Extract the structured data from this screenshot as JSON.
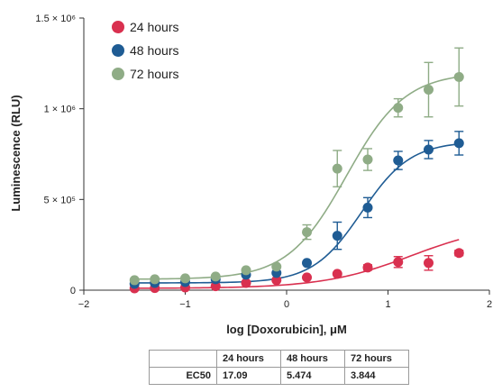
{
  "chart_data": {
    "type": "scatter",
    "title": "",
    "xlabel": "log [Doxorubicin], μM",
    "ylabel": "Luminescence (RLU)",
    "xlim": [
      -2,
      2
    ],
    "ylim": [
      0,
      1500000
    ],
    "x_ticks": [
      {
        "value": -2,
        "label": "−2"
      },
      {
        "value": -1,
        "label": "−1"
      },
      {
        "value": 0,
        "label": "0"
      },
      {
        "value": 1,
        "label": "1"
      },
      {
        "value": 2,
        "label": "2"
      }
    ],
    "y_ticks": [
      {
        "value": 0,
        "label": "0"
      },
      {
        "value": 500000,
        "label": "5 × 10⁵"
      },
      {
        "value": 1000000,
        "label": "1 × 10⁶"
      },
      {
        "value": 1500000,
        "label": "1.5 × 10⁶"
      }
    ],
    "grid": false,
    "legend_position": "top-left",
    "series": [
      {
        "name": "24 hours",
        "color": "#d9304f",
        "x": [
          -1.5,
          -1.3,
          -1.0,
          -0.7,
          -0.4,
          -0.1,
          0.2,
          0.5,
          0.8,
          1.1,
          1.4,
          1.7
        ],
        "values": [
          10000,
          12000,
          15000,
          22000,
          40000,
          55000,
          70000,
          90000,
          125000,
          155000,
          150000,
          205000
        ],
        "errors": [
          0,
          0,
          0,
          0,
          0,
          0,
          0,
          0,
          15000,
          30000,
          40000,
          15000
        ],
        "fit": {
          "bottom": 10000,
          "top": 370000,
          "log_ec50": 1.23,
          "hill": 1.0
        }
      },
      {
        "name": "48 hours",
        "color": "#1f5c94",
        "x": [
          -1.5,
          -1.3,
          -1.0,
          -0.7,
          -0.4,
          -0.1,
          0.2,
          0.5,
          0.8,
          1.1,
          1.4,
          1.7
        ],
        "values": [
          35000,
          40000,
          45000,
          60000,
          85000,
          95000,
          150000,
          300000,
          455000,
          715000,
          775000,
          810000
        ],
        "errors": [
          0,
          0,
          0,
          0,
          0,
          0,
          0,
          75000,
          55000,
          50000,
          50000,
          65000
        ],
        "fit": {
          "bottom": 40000,
          "top": 820000,
          "log_ec50": 0.74,
          "hill": 1.8
        }
      },
      {
        "name": "72 hours",
        "color": "#8fac86",
        "x": [
          -1.5,
          -1.3,
          -1.0,
          -0.7,
          -0.4,
          -0.1,
          0.2,
          0.5,
          0.8,
          1.1,
          1.4,
          1.7
        ],
        "values": [
          55000,
          60000,
          65000,
          75000,
          110000,
          130000,
          320000,
          670000,
          720000,
          1005000,
          1105000,
          1175000
        ],
        "errors": [
          0,
          0,
          0,
          0,
          0,
          0,
          40000,
          100000,
          60000,
          50000,
          150000,
          160000
        ],
        "fit": {
          "bottom": 60000,
          "top": 1200000,
          "log_ec50": 0.59,
          "hill": 1.5
        }
      }
    ]
  },
  "table": {
    "headers": [
      "",
      "24 hours",
      "48 hours",
      "72 hours"
    ],
    "rows": [
      {
        "label": "EC50",
        "values": [
          "17.09",
          "5.474",
          "3.844"
        ]
      }
    ]
  }
}
